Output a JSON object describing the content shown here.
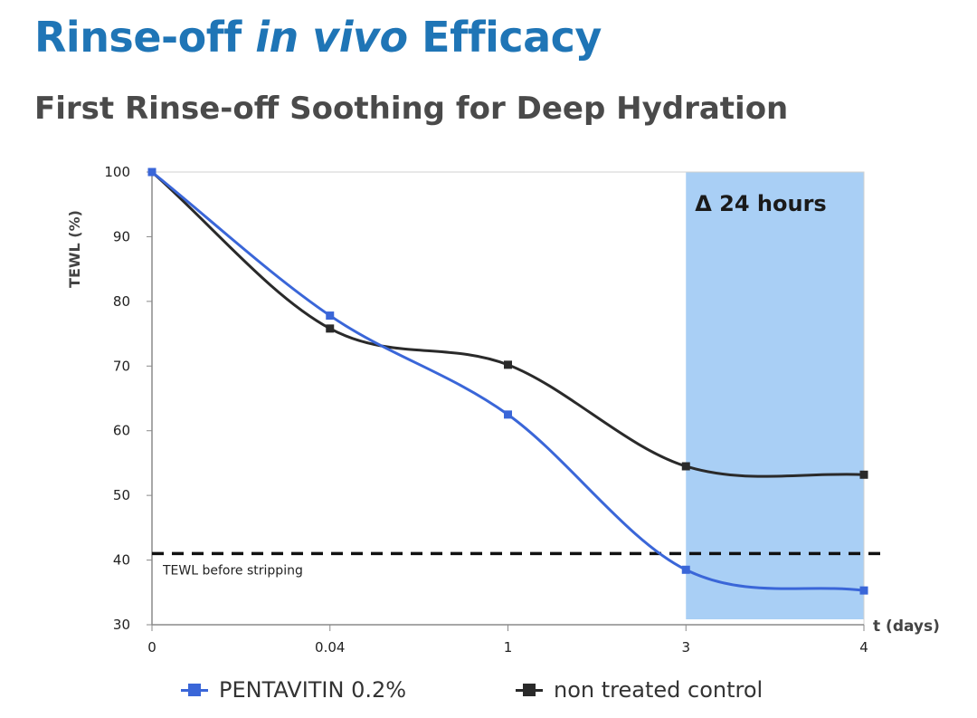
{
  "header": {
    "title_part1": "Rinse-off ",
    "title_italic": "in vivo",
    "title_part2": " Efficacy",
    "subtitle": "First Rinse-off Soothing for Deep Hydration"
  },
  "chart_data": {
    "type": "line",
    "categories": [
      "0",
      "0.04",
      "1",
      "3",
      "4"
    ],
    "series": [
      {
        "name": "PENTAVITIN 0.2%",
        "color": "#3a66d8",
        "values": [
          100,
          77.8,
          62.5,
          38.5,
          35.3
        ]
      },
      {
        "name": "non treated control",
        "color": "#2a2a2a",
        "values": [
          100,
          75.8,
          70.2,
          54.5,
          53.2
        ]
      }
    ],
    "ylabel": "TEWL (%)",
    "xlabel": "t (days)",
    "ylim": [
      30,
      100
    ],
    "yticks": [
      30,
      40,
      50,
      60,
      70,
      80,
      90,
      100
    ],
    "reference_line": {
      "value": 41,
      "label": "TEWL before stripping"
    },
    "highlight": {
      "from": "3",
      "to": "4",
      "label": "Δ 24 hours",
      "color": "#a9cff5"
    },
    "grid": false
  }
}
